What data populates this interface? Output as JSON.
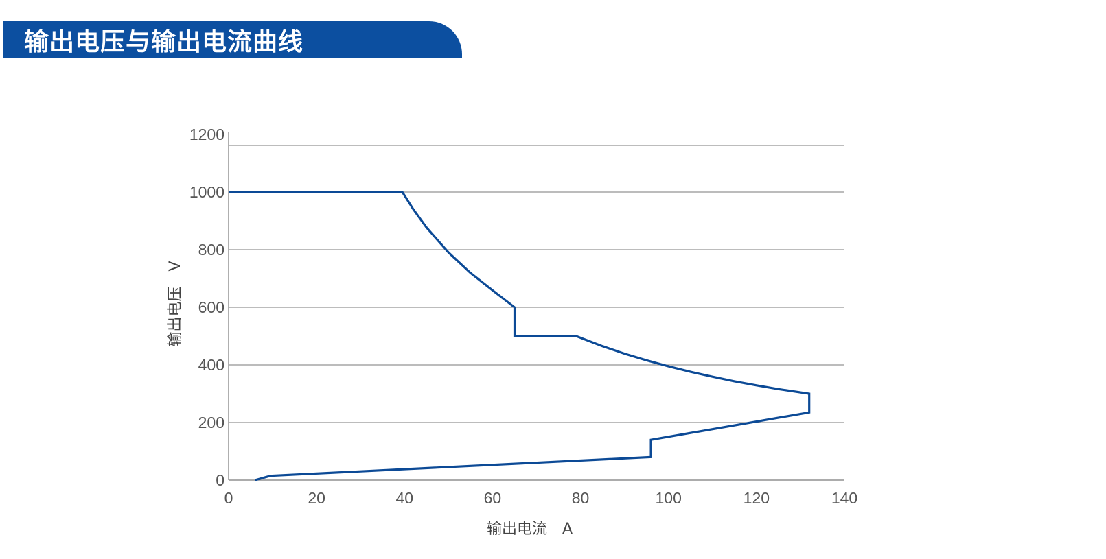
{
  "header": {
    "title": "输出电压与输出电流曲线"
  },
  "colors": {
    "banner": "#0c4fa0",
    "line": "#0c4a96",
    "grid": "#7a7a7a",
    "axis": "#7a7a7a"
  },
  "chart_data": {
    "type": "line",
    "title": "",
    "xlabel": "输出电流　A",
    "ylabel": "输出电压　V",
    "xlim": [
      0,
      140
    ],
    "ylim": [
      0,
      1200
    ],
    "x_ticks": [
      0,
      20,
      40,
      60,
      80,
      100,
      120,
      140
    ],
    "y_ticks": [
      0,
      200,
      400,
      600,
      800,
      1000,
      1200
    ],
    "grid": "horizontal",
    "series": [
      {
        "x": [
          0,
          39.5,
          42,
          45,
          50,
          55,
          60,
          65,
          65,
          79,
          85,
          90,
          95,
          100,
          105,
          110,
          115,
          120,
          125,
          132,
          132,
          96,
          96,
          9.5,
          6
        ],
        "y": [
          1000,
          1000,
          940,
          877,
          790,
          719,
          659,
          600,
          500,
          500,
          465,
          439,
          416,
          395,
          376,
          359,
          343,
          329,
          316,
          300,
          235,
          140,
          80,
          15,
          0
        ]
      }
    ]
  }
}
